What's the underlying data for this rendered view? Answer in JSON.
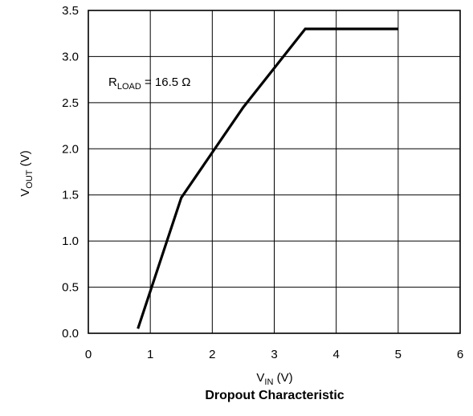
{
  "chart_data": {
    "type": "line",
    "title": "Dropout Characteristic",
    "xlabel": {
      "main": "V",
      "sub": "IN",
      "unit": " (V)"
    },
    "ylabel": {
      "main": "V",
      "sub": "OUT",
      "unit": " (V)"
    },
    "xlim": [
      0,
      6
    ],
    "ylim": [
      0,
      3.5
    ],
    "x_ticks": [
      0,
      1,
      2,
      3,
      4,
      5,
      6
    ],
    "x_tick_labels": [
      "0",
      "1",
      "2",
      "3",
      "4",
      "5",
      "6"
    ],
    "y_ticks": [
      0,
      0.5,
      1,
      1.5,
      2,
      2.5,
      3,
      3.5
    ],
    "y_tick_labels": [
      "0.0",
      "0.5",
      "1.0",
      "1.5",
      "2.0",
      "2.5",
      "3.0",
      "3.5"
    ],
    "grid": true,
    "annotation": {
      "main": "R",
      "sub": "LOAD",
      "rest": " = 16.5 Ω"
    },
    "series": [
      {
        "x": [
          0.8,
          1.5,
          2.5,
          3.5,
          5.0
        ],
        "y": [
          0.05,
          1.47,
          2.45,
          3.3,
          3.3
        ]
      }
    ]
  }
}
